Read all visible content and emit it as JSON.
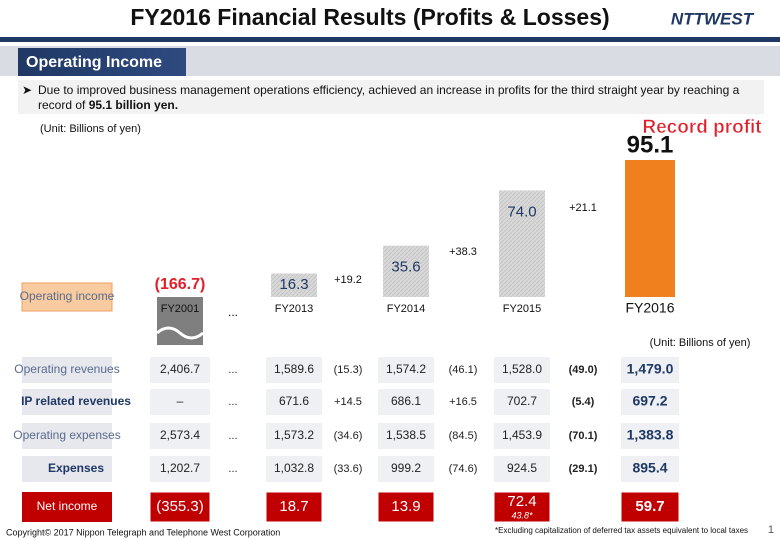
{
  "header": {
    "title": "FY2016 Financial Results (Profits & Losses)",
    "logo": "NTTWEST"
  },
  "section": "Operating Income",
  "bullet": {
    "text": "Due to improved business management operations efficiency, achieved an increase in profits for the third straight year by reaching a record of ",
    "bold": "95.1 billion yen."
  },
  "chart_data": {
    "type": "bar",
    "unit": "(Unit: Billions of yen)",
    "series_label": "Operating income",
    "categories": [
      "FY2001",
      "FY2013",
      "FY2014",
      "FY2015",
      "FY2016"
    ],
    "values": [
      -166.7,
      16.3,
      35.6,
      74.0,
      95.1
    ],
    "value_labels": [
      "(166.7)",
      "16.3",
      "35.6",
      "74.0",
      "95.1"
    ],
    "colors": [
      "#7f7f7f",
      "#d0d0d0",
      "#d0d0d0",
      "#d0d0d0",
      "#f07f1e"
    ],
    "gap_label": "...",
    "annotations": [
      "+19.2",
      "+38.3",
      "+21.1"
    ],
    "badge": "Record profit"
  },
  "table": {
    "unit": "(Unit: Billions of yen)",
    "rows": [
      {
        "label": "Operating revenues",
        "cells": [
          "2,406.7",
          "...",
          "1,589.6",
          "(15.3)",
          "1,574.2",
          "(46.1)",
          "1,528.0",
          "(49.0)",
          "1,479.0"
        ]
      },
      {
        "label": "IP related revenues",
        "cells": [
          "–",
          "...",
          "671.6",
          "+14.5",
          "686.1",
          "+16.5",
          "702.7",
          "(5.4)",
          "697.2"
        ]
      },
      {
        "label": "Operating expenses",
        "cells": [
          "2,573.4",
          "...",
          "1,573.2",
          "(34.6)",
          "1,538.5",
          "(84.5)",
          "1,453.9",
          "(70.1)",
          "1,383.8"
        ]
      },
      {
        "label": "Expenses",
        "cells": [
          "1,202.7",
          "...",
          "1,032.8",
          "(33.6)",
          "999.2",
          "(74.6)",
          "924.5",
          "(29.1)",
          "895.4"
        ]
      },
      {
        "label": "Net income",
        "cells": [
          "(355.3)",
          "...",
          "18.7",
          null,
          "13.9",
          null,
          "72.4",
          null,
          "59.7"
        ]
      }
    ],
    "net_income_note": "43.8*",
    "footnote": "*Excluding capitalization of deferred tax assets equivalent to local taxes"
  },
  "footer": {
    "copyright": "Copyright© 2017 Nippon Telegraph and Telephone West Corporation",
    "page": "1"
  }
}
